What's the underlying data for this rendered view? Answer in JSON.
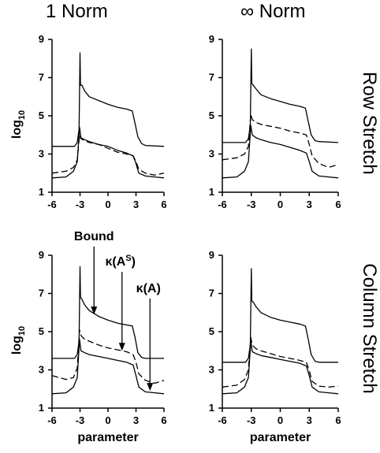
{
  "headers": {
    "columns": [
      "1 Norm",
      "∞ Norm"
    ],
    "rows": [
      "Row Stretch",
      "Column Stretch"
    ]
  },
  "chart_data": [
    {
      "id": "row-stretch-1-norm",
      "type": "line",
      "xlabel": "",
      "ylabel": "log10",
      "xlim": [
        -6,
        6
      ],
      "ylim": [
        1,
        9
      ],
      "xticks": [
        -6,
        -3,
        0,
        3,
        6
      ],
      "yticks": [
        1,
        3,
        5,
        7,
        9
      ],
      "grid": false,
      "annotations": [],
      "series": [
        {
          "style": "solid",
          "points": [
            [
              -6,
              3.4
            ],
            [
              -3.6,
              3.4
            ],
            [
              -3.3,
              3.6
            ],
            [
              -3.1,
              4.3
            ],
            [
              -3.0,
              8.3
            ],
            [
              -2.95,
              6.6
            ],
            [
              -2.8,
              6.6
            ],
            [
              -2.5,
              6.3
            ],
            [
              -2,
              6.0
            ],
            [
              -1,
              5.8
            ],
            [
              0,
              5.6
            ],
            [
              1,
              5.45
            ],
            [
              2,
              5.35
            ],
            [
              2.6,
              5.25
            ],
            [
              2.9,
              4.6
            ],
            [
              3.2,
              3.9
            ],
            [
              3.6,
              3.55
            ],
            [
              4,
              3.45
            ],
            [
              6,
              3.4
            ]
          ]
        },
        {
          "style": "dashed",
          "points": [
            [
              -6,
              2.0
            ],
            [
              -4.5,
              2.1
            ],
            [
              -3.7,
              2.3
            ],
            [
              -3.3,
              2.7
            ],
            [
              -3.05,
              4.0
            ],
            [
              -2.9,
              3.8
            ],
            [
              -2.5,
              3.7
            ],
            [
              -2,
              3.6
            ],
            [
              -1,
              3.5
            ],
            [
              0,
              3.3
            ],
            [
              1,
              3.1
            ],
            [
              2,
              3.0
            ],
            [
              2.7,
              2.9
            ],
            [
              3.0,
              2.6
            ],
            [
              3.3,
              2.2
            ],
            [
              4,
              2.0
            ],
            [
              5,
              1.9
            ],
            [
              6,
              2.0
            ]
          ]
        },
        {
          "style": "solid",
          "points": [
            [
              -6,
              1.75
            ],
            [
              -4.5,
              1.8
            ],
            [
              -3.7,
              2.1
            ],
            [
              -3.3,
              2.6
            ],
            [
              -3.05,
              4.4
            ],
            [
              -2.9,
              3.85
            ],
            [
              -2.5,
              3.75
            ],
            [
              -2,
              3.65
            ],
            [
              -1,
              3.5
            ],
            [
              0,
              3.4
            ],
            [
              1,
              3.2
            ],
            [
              2,
              3.05
            ],
            [
              2.7,
              2.9
            ],
            [
              3.0,
              2.5
            ],
            [
              3.3,
              2.0
            ],
            [
              4,
              1.85
            ],
            [
              5,
              1.8
            ],
            [
              6,
              1.75
            ]
          ]
        }
      ]
    },
    {
      "id": "row-stretch-inf-norm",
      "type": "line",
      "xlabel": "",
      "ylabel": "",
      "xlim": [
        -6,
        6
      ],
      "ylim": [
        1,
        9
      ],
      "xticks": [
        -6,
        -3,
        0,
        3,
        6
      ],
      "yticks": [
        1,
        3,
        5,
        7,
        9
      ],
      "grid": false,
      "annotations": [],
      "series": [
        {
          "style": "solid",
          "points": [
            [
              -6,
              3.6
            ],
            [
              -3.6,
              3.6
            ],
            [
              -3.3,
              3.8
            ],
            [
              -3.1,
              4.5
            ],
            [
              -3.0,
              8.5
            ],
            [
              -2.95,
              6.7
            ],
            [
              -2.8,
              6.6
            ],
            [
              -2.5,
              6.4
            ],
            [
              -2,
              6.1
            ],
            [
              -1,
              5.9
            ],
            [
              0,
              5.75
            ],
            [
              1,
              5.6
            ],
            [
              2,
              5.5
            ],
            [
              2.6,
              5.4
            ],
            [
              2.9,
              4.7
            ],
            [
              3.2,
              4.0
            ],
            [
              3.6,
              3.7
            ],
            [
              4,
              3.65
            ],
            [
              6,
              3.6
            ]
          ]
        },
        {
          "style": "dashed",
          "points": [
            [
              -6,
              2.7
            ],
            [
              -4.5,
              2.8
            ],
            [
              -3.7,
              3.0
            ],
            [
              -3.3,
              3.4
            ],
            [
              -3.05,
              5.1
            ],
            [
              -2.9,
              4.8
            ],
            [
              -2.5,
              4.65
            ],
            [
              -2,
              4.55
            ],
            [
              -1,
              4.45
            ],
            [
              0,
              4.35
            ],
            [
              1,
              4.2
            ],
            [
              2,
              4.1
            ],
            [
              2.7,
              4.0
            ],
            [
              3.0,
              3.5
            ],
            [
              3.3,
              2.9
            ],
            [
              4,
              2.5
            ],
            [
              5,
              2.3
            ],
            [
              6,
              2.45
            ]
          ]
        },
        {
          "style": "solid",
          "points": [
            [
              -6,
              1.75
            ],
            [
              -4.5,
              1.8
            ],
            [
              -3.7,
              2.1
            ],
            [
              -3.3,
              2.6
            ],
            [
              -3.05,
              4.5
            ],
            [
              -2.9,
              4.0
            ],
            [
              -2.5,
              3.85
            ],
            [
              -2,
              3.75
            ],
            [
              -1,
              3.6
            ],
            [
              0,
              3.5
            ],
            [
              1,
              3.35
            ],
            [
              2,
              3.2
            ],
            [
              2.7,
              3.05
            ],
            [
              3.0,
              2.6
            ],
            [
              3.3,
              2.1
            ],
            [
              4,
              1.85
            ],
            [
              5,
              1.8
            ],
            [
              6,
              1.75
            ]
          ]
        }
      ]
    },
    {
      "id": "column-stretch-1-norm",
      "type": "line",
      "xlabel": "parameter",
      "ylabel": "log10",
      "xlim": [
        -6,
        6
      ],
      "ylim": [
        1,
        9
      ],
      "xticks": [
        -6,
        -3,
        0,
        3,
        6
      ],
      "yticks": [
        1,
        3,
        5,
        7,
        9
      ],
      "grid": false,
      "annotations": [
        {
          "label": "Bound",
          "x": -1.5,
          "y": 5.9
        },
        {
          "label": "κ(A",
          "sup": "S",
          "label_end": ")",
          "x": 1.5,
          "y": 4.0
        },
        {
          "label": "κ(A)",
          "x": 4.5,
          "y": 1.9
        }
      ],
      "series": [
        {
          "style": "solid",
          "points": [
            [
              -6,
              3.6
            ],
            [
              -3.6,
              3.6
            ],
            [
              -3.3,
              3.8
            ],
            [
              -3.1,
              4.5
            ],
            [
              -3.0,
              8.4
            ],
            [
              -2.95,
              6.8
            ],
            [
              -2.8,
              6.7
            ],
            [
              -2.5,
              6.4
            ],
            [
              -2,
              6.1
            ],
            [
              -1,
              5.8
            ],
            [
              0,
              5.6
            ],
            [
              1,
              5.45
            ],
            [
              2,
              5.35
            ],
            [
              2.6,
              5.3
            ],
            [
              2.9,
              4.7
            ],
            [
              3.2,
              3.9
            ],
            [
              3.6,
              3.65
            ],
            [
              4,
              3.6
            ],
            [
              6,
              3.6
            ]
          ]
        },
        {
          "style": "dashed",
          "points": [
            [
              -6,
              2.7
            ],
            [
              -4.5,
              2.5
            ],
            [
              -3.7,
              2.6
            ],
            [
              -3.3,
              3.1
            ],
            [
              -3.05,
              5.1
            ],
            [
              -2.9,
              4.8
            ],
            [
              -2.5,
              4.6
            ],
            [
              -2,
              4.5
            ],
            [
              -1,
              4.3
            ],
            [
              0,
              4.15
            ],
            [
              1,
              4.05
            ],
            [
              2,
              3.95
            ],
            [
              2.7,
              3.8
            ],
            [
              3.0,
              3.4
            ],
            [
              3.3,
              2.8
            ],
            [
              4,
              2.45
            ],
            [
              5,
              2.3
            ],
            [
              6,
              2.45
            ]
          ]
        },
        {
          "style": "solid",
          "points": [
            [
              -6,
              1.75
            ],
            [
              -4.5,
              1.8
            ],
            [
              -3.7,
              2.1
            ],
            [
              -3.3,
              2.6
            ],
            [
              -3.05,
              4.6
            ],
            [
              -2.9,
              4.0
            ],
            [
              -2.5,
              3.9
            ],
            [
              -2,
              3.8
            ],
            [
              -1,
              3.7
            ],
            [
              0,
              3.6
            ],
            [
              1,
              3.5
            ],
            [
              2,
              3.4
            ],
            [
              2.7,
              3.25
            ],
            [
              3.0,
              2.7
            ],
            [
              3.3,
              2.1
            ],
            [
              4,
              1.85
            ],
            [
              5,
              1.8
            ],
            [
              6,
              1.75
            ]
          ]
        }
      ]
    },
    {
      "id": "column-stretch-inf-norm",
      "type": "line",
      "xlabel": "parameter",
      "ylabel": "",
      "xlim": [
        -6,
        6
      ],
      "ylim": [
        1,
        9
      ],
      "xticks": [
        -6,
        -3,
        0,
        3,
        6
      ],
      "yticks": [
        1,
        3,
        5,
        7,
        9
      ],
      "grid": false,
      "annotations": [],
      "series": [
        {
          "style": "solid",
          "points": [
            [
              -6,
              3.4
            ],
            [
              -3.6,
              3.4
            ],
            [
              -3.3,
              3.6
            ],
            [
              -3.1,
              4.3
            ],
            [
              -3.0,
              8.3
            ],
            [
              -2.95,
              6.6
            ],
            [
              -2.8,
              6.55
            ],
            [
              -2.5,
              6.3
            ],
            [
              -2,
              6.0
            ],
            [
              -1,
              5.75
            ],
            [
              0,
              5.6
            ],
            [
              1,
              5.5
            ],
            [
              2,
              5.4
            ],
            [
              2.6,
              5.3
            ],
            [
              2.9,
              4.6
            ],
            [
              3.2,
              3.8
            ],
            [
              3.6,
              3.45
            ],
            [
              4,
              3.4
            ],
            [
              6,
              3.4
            ]
          ]
        },
        {
          "style": "dashed",
          "points": [
            [
              -6,
              2.1
            ],
            [
              -4.5,
              2.2
            ],
            [
              -3.7,
              2.5
            ],
            [
              -3.3,
              3.0
            ],
            [
              -3.05,
              4.7
            ],
            [
              -2.9,
              4.3
            ],
            [
              -2.5,
              4.1
            ],
            [
              -2,
              4.0
            ],
            [
              -1,
              3.85
            ],
            [
              0,
              3.7
            ],
            [
              1,
              3.6
            ],
            [
              2,
              3.5
            ],
            [
              2.7,
              3.4
            ],
            [
              3.0,
              2.95
            ],
            [
              3.3,
              2.4
            ],
            [
              4,
              2.15
            ],
            [
              5,
              2.1
            ],
            [
              6,
              2.15
            ]
          ]
        },
        {
          "style": "solid",
          "points": [
            [
              -6,
              1.75
            ],
            [
              -4.5,
              1.8
            ],
            [
              -3.7,
              2.1
            ],
            [
              -3.3,
              2.6
            ],
            [
              -3.05,
              4.5
            ],
            [
              -2.9,
              3.95
            ],
            [
              -2.5,
              3.85
            ],
            [
              -2,
              3.75
            ],
            [
              -1,
              3.65
            ],
            [
              0,
              3.55
            ],
            [
              1,
              3.45
            ],
            [
              2,
              3.35
            ],
            [
              2.7,
              3.2
            ],
            [
              3.0,
              2.7
            ],
            [
              3.3,
              2.1
            ],
            [
              4,
              1.85
            ],
            [
              5,
              1.8
            ],
            [
              6,
              1.75
            ]
          ]
        }
      ]
    }
  ]
}
